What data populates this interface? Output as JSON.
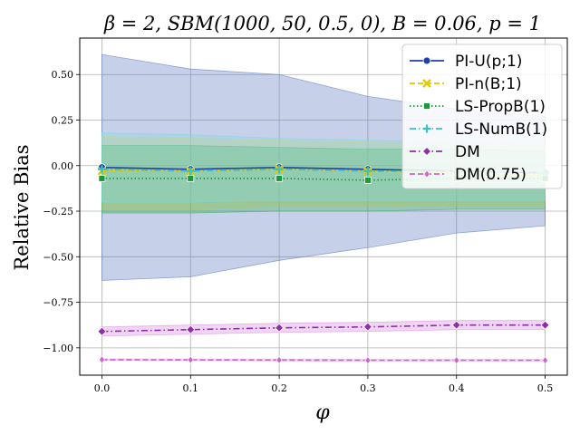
{
  "chart_data": {
    "type": "line",
    "title": "β = 2, SBM(1000, 50, 0.5, 0), B = 0.06, p = 1",
    "xlabel": "φ",
    "ylabel": "Relative Bias",
    "xlim": [
      -0.025,
      0.525
    ],
    "ylim": [
      -1.15,
      0.7
    ],
    "x": [
      0.0,
      0.1,
      0.2,
      0.3,
      0.4,
      0.5
    ],
    "xticks": [
      "0.0",
      "0.1",
      "0.2",
      "0.3",
      "0.4",
      "0.5"
    ],
    "yticks": [
      0.5,
      0.25,
      0.0,
      -0.25,
      -0.5,
      -0.75,
      -1.0
    ],
    "ytick_labels": [
      "0.50",
      "0.25",
      "0.00",
      "−0.25",
      "−0.50",
      "−0.75",
      "−1.00"
    ],
    "grid": true,
    "legend_position": "top-right",
    "series": [
      {
        "name": "PI-U(p;1)",
        "color": "#1f3fa6",
        "linestyle": "solid",
        "marker": "circle",
        "values": [
          -0.01,
          -0.02,
          -0.01,
          -0.02,
          -0.03,
          -0.04
        ],
        "band_lower": [
          -0.63,
          -0.61,
          -0.52,
          -0.45,
          -0.37,
          -0.33
        ],
        "band_upper": [
          0.61,
          0.53,
          0.5,
          0.38,
          0.31,
          0.27
        ],
        "band_color": "#5b7ac0"
      },
      {
        "name": "PI-n(B;1)",
        "color": "#e3c800",
        "linestyle": "dashed",
        "marker": "x",
        "values": [
          -0.03,
          -0.03,
          -0.02,
          -0.03,
          -0.04,
          -0.05
        ],
        "band_lower": [
          -0.24,
          -0.24,
          -0.22,
          -0.22,
          -0.22,
          -0.22
        ],
        "band_upper": [
          0.16,
          0.15,
          0.14,
          0.13,
          0.12,
          0.11
        ],
        "band_color": "#e8d45a"
      },
      {
        "name": "LS-PropB(1)",
        "color": "#1a9a3a",
        "linestyle": "dotted",
        "marker": "square",
        "values": [
          -0.07,
          -0.07,
          -0.07,
          -0.08,
          -0.07,
          -0.07
        ],
        "band_lower": [
          -0.26,
          -0.26,
          -0.25,
          -0.25,
          -0.24,
          -0.24
        ],
        "band_upper": [
          0.11,
          0.11,
          0.1,
          0.09,
          0.09,
          0.08
        ],
        "band_color": "#3db35a"
      },
      {
        "name": "LS-NumB(1)",
        "color": "#3cc0c0",
        "linestyle": "dashdot",
        "marker": "plus",
        "values": [
          -0.02,
          -0.03,
          -0.02,
          -0.03,
          -0.03,
          -0.04
        ],
        "band_lower": [
          -0.2,
          -0.2,
          -0.19,
          -0.19,
          -0.19,
          -0.19
        ],
        "band_upper": [
          0.18,
          0.17,
          0.15,
          0.14,
          0.13,
          0.12
        ],
        "band_color": "#7fd8e6"
      },
      {
        "name": "DM",
        "color": "#8e2fa8",
        "linestyle": "dashdot",
        "marker": "diamond",
        "values": [
          -0.91,
          -0.9,
          -0.89,
          -0.885,
          -0.875,
          -0.875
        ],
        "band_lower": [
          -0.935,
          -0.925,
          -0.915,
          -0.91,
          -0.9,
          -0.9
        ],
        "band_upper": [
          -0.885,
          -0.875,
          -0.865,
          -0.86,
          -0.85,
          -0.85
        ],
        "band_color": "#d58ae0"
      },
      {
        "name": "DM(0.75)",
        "color": "#cc66cc",
        "linestyle": "dashed",
        "marker": "thin-diamond",
        "values": [
          -1.065,
          -1.066,
          -1.067,
          -1.068,
          -1.068,
          -1.068
        ],
        "band_lower": [
          -1.07,
          -1.071,
          -1.072,
          -1.073,
          -1.073,
          -1.073
        ],
        "band_upper": [
          -1.06,
          -1.061,
          -1.062,
          -1.063,
          -1.063,
          -1.063
        ],
        "band_color": "#e5a5e5"
      }
    ]
  }
}
